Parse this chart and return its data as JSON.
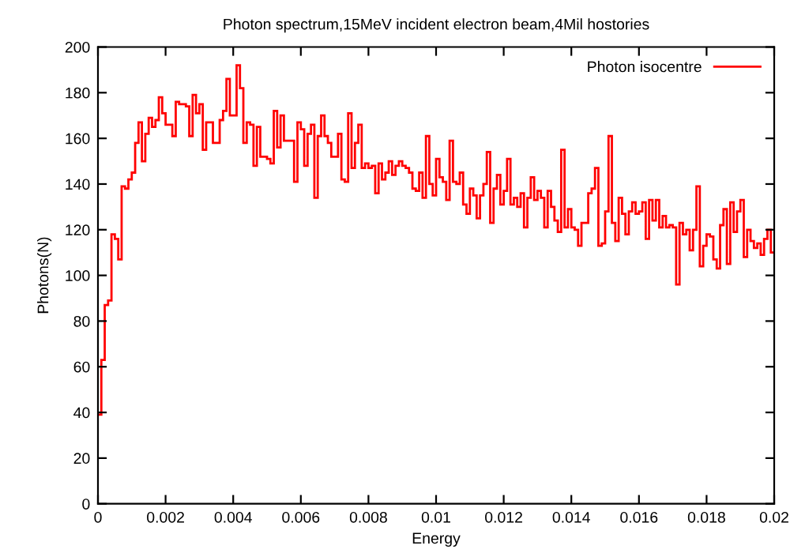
{
  "chart_data": {
    "type": "histogram",
    "title": "Photon spectrum,15MeV incident electron beam,4Mil hostories",
    "xlabel": "Energy",
    "ylabel": "Photons(N)",
    "bins": [
      0,
      0.0001,
      0.0002,
      0.0003,
      0.0004,
      0.0005,
      0.0006,
      0.0007,
      0.0008,
      0.0009,
      0.001,
      0.0011,
      0.0012,
      0.0013,
      0.0014,
      0.0015,
      0.0016,
      0.0017,
      0.0018,
      0.0019,
      0.002,
      0.0021,
      0.0022,
      0.0023,
      0.0024,
      0.0025,
      0.0026,
      0.0027,
      0.0028,
      0.0029,
      0.003,
      0.0031,
      0.0032,
      0.0033,
      0.0034,
      0.0035,
      0.0036,
      0.0037,
      0.0038,
      0.0039,
      0.004,
      0.0041,
      0.0042,
      0.0043,
      0.0044,
      0.0045,
      0.0046,
      0.0047,
      0.0048,
      0.0049,
      0.005,
      0.0051,
      0.0052,
      0.0053,
      0.0054,
      0.0055,
      0.0056,
      0.0057,
      0.0058,
      0.0059,
      0.006,
      0.0061,
      0.0062,
      0.0063,
      0.0064,
      0.0065,
      0.0066,
      0.0067,
      0.0068,
      0.0069,
      0.007,
      0.0071,
      0.0072,
      0.0073,
      0.0074,
      0.0075,
      0.0076,
      0.0077,
      0.0078,
      0.0079,
      0.008,
      0.0081,
      0.0082,
      0.0083,
      0.0084,
      0.0085,
      0.0086,
      0.0087,
      0.0088,
      0.0089,
      0.009,
      0.0091,
      0.0092,
      0.0093,
      0.0094,
      0.0095,
      0.0096,
      0.0097,
      0.0098,
      0.0099,
      0.01,
      0.0101,
      0.0102,
      0.0103,
      0.0104,
      0.0105,
      0.0106,
      0.0107,
      0.0108,
      0.0109,
      0.011,
      0.0111,
      0.0112,
      0.0113,
      0.0114,
      0.0115,
      0.0116,
      0.0117,
      0.0118,
      0.0119,
      0.012,
      0.0121,
      0.0122,
      0.0123,
      0.0124,
      0.0125,
      0.0126,
      0.0127,
      0.0128,
      0.0129,
      0.013,
      0.0131,
      0.0132,
      0.0133,
      0.0134,
      0.0135,
      0.0136,
      0.0137,
      0.0138,
      0.0139,
      0.014,
      0.0141,
      0.0142,
      0.0143,
      0.0144,
      0.0145,
      0.0146,
      0.0147,
      0.0148,
      0.0149,
      0.015,
      0.0151,
      0.0152,
      0.0153,
      0.0154,
      0.0155,
      0.0156,
      0.0157,
      0.0158,
      0.0159,
      0.016,
      0.0161,
      0.0162,
      0.0163,
      0.0164,
      0.0165,
      0.0166,
      0.0167,
      0.0168,
      0.0169,
      0.017,
      0.0171,
      0.0172,
      0.0173,
      0.0174,
      0.0175,
      0.0176,
      0.0177,
      0.0178,
      0.0179,
      0.018,
      0.0181,
      0.0182,
      0.0183,
      0.0184,
      0.0185,
      0.0186,
      0.0187,
      0.0188,
      0.0189,
      0.019,
      0.0191,
      0.0192,
      0.0193,
      0.0194,
      0.0195,
      0.0196,
      0.0197,
      0.0198,
      0.0199,
      0.02
    ],
    "series": [
      {
        "name": "Photon isocentre",
        "color": "#ff0000",
        "values": [
          39,
          63,
          87,
          89,
          118,
          116,
          107,
          139,
          138,
          142,
          145,
          158,
          167,
          150,
          162,
          169,
          165,
          168,
          178,
          171,
          166,
          166,
          161,
          176,
          175,
          175,
          174,
          161,
          179,
          171,
          175,
          155,
          167,
          167,
          158,
          158,
          168,
          172,
          186,
          170,
          170,
          192,
          182,
          158,
          167,
          166,
          148,
          165,
          152,
          152,
          151,
          149,
          172,
          156,
          170,
          159,
          159,
          159,
          141,
          167,
          164,
          148,
          162,
          166,
          134,
          161,
          170,
          161,
          158,
          152,
          152,
          162,
          142,
          141,
          171,
          147,
          158,
          166,
          147,
          149,
          147,
          148,
          136,
          149,
          142,
          145,
          150,
          144,
          148,
          150,
          148,
          147,
          145,
          138,
          137,
          145,
          134,
          161,
          140,
          135,
          151,
          143,
          141,
          133,
          159,
          141,
          140,
          145,
          131,
          127,
          138,
          135,
          125,
          135,
          140,
          154,
          123,
          138,
          144,
          131,
          137,
          151,
          131,
          134,
          130,
          136,
          121,
          134,
          143,
          133,
          137,
          134,
          121,
          137,
          130,
          124,
          119,
          155,
          121,
          129,
          121,
          120,
          113,
          123,
          123,
          136,
          138,
          147,
          113,
          114,
          128,
          161,
          123,
          115,
          134,
          127,
          118,
          128,
          132,
          127,
          128,
          132,
          116,
          133,
          124,
          133,
          121,
          126,
          121,
          122,
          121,
          96,
          123,
          118,
          120,
          111,
          120,
          139,
          104,
          113,
          118,
          117,
          107,
          103,
          122,
          129,
          105,
          132,
          119,
          128,
          133,
          108,
          120,
          115,
          112,
          114,
          109,
          116,
          120,
          110
        ]
      }
    ],
    "xlim": [
      0,
      0.02
    ],
    "xticks": [
      0,
      0.002,
      0.004,
      0.006,
      0.008,
      0.01,
      0.012,
      0.014,
      0.016,
      0.018,
      0.02
    ],
    "ylim": [
      0,
      200
    ],
    "yticks": [
      0,
      20,
      40,
      60,
      80,
      100,
      120,
      140,
      160,
      180,
      200
    ],
    "legend": "top right"
  }
}
